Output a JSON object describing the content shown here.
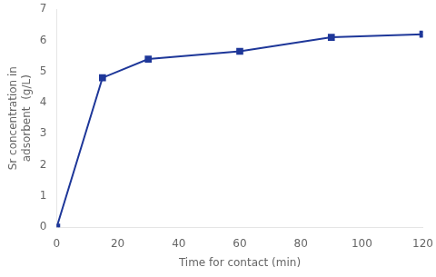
{
  "chart_data": {
    "type": "line",
    "x": [
      0,
      15,
      30,
      60,
      90,
      120
    ],
    "values": [
      0.0,
      4.8,
      5.4,
      5.65,
      6.1,
      6.2
    ],
    "color": "#1e3799",
    "marker": "square",
    "xlabel": "Time for contact (min)",
    "ylabel": "Sr concentration in\nadsorbent  (g/L)",
    "xlim": [
      0,
      120
    ],
    "ylim": [
      0,
      7
    ],
    "xticks": [
      0,
      20,
      40,
      60,
      80,
      100,
      120
    ],
    "yticks": [
      0,
      1,
      2,
      3,
      4,
      5,
      6,
      7
    ],
    "grid": false
  }
}
